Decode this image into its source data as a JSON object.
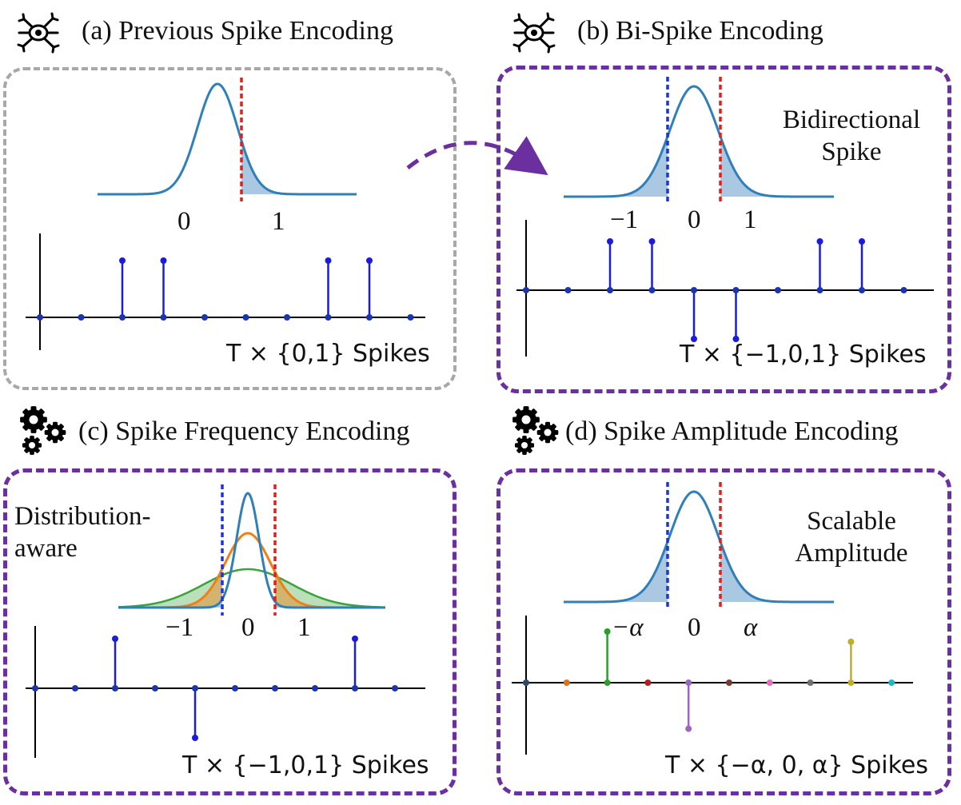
{
  "panels": {
    "a": {
      "title": "(a) Previous Spike Encoding",
      "icon": "neuron-icon",
      "tick_labels": [
        "0",
        "1"
      ],
      "spikes_label": "T × {0,1} Spikes",
      "spike_values": [
        0,
        0,
        1,
        1,
        0,
        0,
        0,
        1,
        1,
        0
      ]
    },
    "b": {
      "title": "(b) Bi-Spike Encoding",
      "icon": "neuron-icon",
      "tick_labels": [
        "−1",
        "0",
        "1"
      ],
      "annotation": [
        "Bidirectional",
        "Spike"
      ],
      "spikes_label": "T × {−1,0,1} Spikes",
      "spike_values": [
        0,
        0,
        1,
        1,
        -1,
        -1,
        0,
        1,
        1,
        0
      ]
    },
    "c": {
      "title": "(c) Spike Frequency Encoding",
      "icon": "gears-icon",
      "tick_labels": [
        "−1",
        "0",
        "1"
      ],
      "annotation": [
        "Distribution-",
        "aware"
      ],
      "spikes_label": "T × {−1,0,1} Spikes",
      "spike_values": [
        0,
        0,
        1,
        0,
        -1,
        0,
        0,
        0,
        1,
        0
      ]
    },
    "d": {
      "title": "(d) Spike Amplitude Encoding",
      "icon": "gears-icon",
      "tick_labels": [
        "−α",
        "0",
        "α"
      ],
      "annotation": [
        "Scalable",
        "Amplitude"
      ],
      "spikes_label": "T × {−α, 0, α} Spikes",
      "spike_values": [
        0,
        0,
        1,
        0,
        -0.9,
        0,
        0,
        0,
        0.8,
        0
      ]
    }
  },
  "colors": {
    "gaussian": "#2f7fb8",
    "fill": "#aac8e2",
    "threshold_pos": "#e0201c",
    "threshold_neg": "#1a35e0",
    "spike": "#1a1ae0",
    "orange": "#f07f17",
    "green": "#3aa33a",
    "panel_gray": "#a8a8a8",
    "panel_purple": "#6b2fa0",
    "amplitude_dots": [
      "#2a4a6a",
      "#e0701a",
      "#2f9b2f",
      "#b02020",
      "#9a66c0",
      "#7a3a30",
      "#e070c0",
      "#707070",
      "#c0b020",
      "#20b8c8"
    ]
  }
}
